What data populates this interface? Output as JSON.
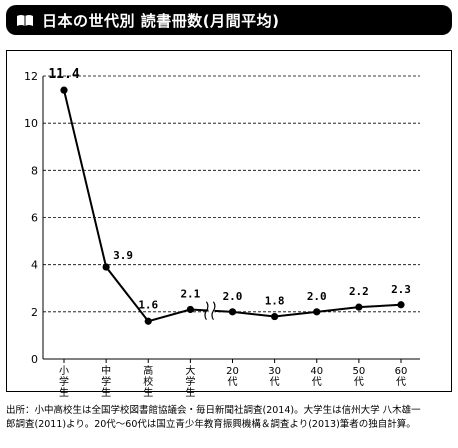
{
  "title": "日本の世代別 読書冊数(月間平均)",
  "chart_data": {
    "type": "line",
    "title": "日本の世代別 読書冊数(月間平均)",
    "categories": [
      "小学生",
      "中学生",
      "高校生",
      "大学生",
      "20代",
      "30代",
      "40代",
      "50代",
      "60代"
    ],
    "series": [
      {
        "values": [
          11.4,
          3.9,
          1.6,
          2.1,
          2.0,
          1.8,
          2.0,
          2.2,
          2.3
        ]
      }
    ],
    "data_labels": [
      "11.4",
      "3.9",
      "1.6",
      "2.1",
      "2.0",
      "1.8",
      "2.0",
      "2.2",
      "2.3"
    ],
    "yticks": [
      "0",
      "2",
      "4",
      "6",
      "8",
      "10",
      "12"
    ],
    "ylim": [
      0,
      12
    ],
    "grid": "horizontal dashed",
    "axis_break_after": "大学生",
    "line_color": "#000000"
  },
  "footnote": {
    "line1": "出所：小中高校生は全国学校図書館協議会・毎日新聞社調査(2014)。大学生は信州大学 八木雄一",
    "line2": "郎調査(2011)より。20代〜60代は国立青少年教育振興機構＆調査より(2013)筆者の独自計算。"
  }
}
